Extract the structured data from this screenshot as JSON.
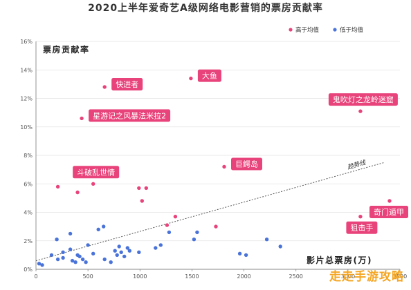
{
  "colors": {
    "high": "#e8437a",
    "low": "#4a73d9",
    "label_bg": "#e8437a",
    "watermark": "#f5a623"
  },
  "chart_data": {
    "type": "scatter",
    "title": "2020上半年爱奇艺A级网络电影营销的票房贡献率",
    "ylabel": "票房贡献率",
    "xlabel": "影片总票房(万)",
    "xlim": [
      0,
      3500
    ],
    "ylim": [
      0,
      16
    ],
    "x_ticks": [
      "0",
      "500",
      "1000",
      "1500",
      "2000",
      "2500",
      "3000",
      "3500"
    ],
    "y_ticks": [
      "0%",
      "2%",
      "4%",
      "6%",
      "8%",
      "10%",
      "12%",
      "14%",
      "16%"
    ],
    "grid": "horizontal",
    "legend_position": "top-right",
    "trend_line": {
      "label": "趋势线",
      "from": [
        0,
        0.6
      ],
      "to": [
        3350,
        7.5
      ]
    },
    "series": [
      {
        "name": "高于均值",
        "color": "#e8437a",
        "points": [
          [
            1490,
            13.4
          ],
          [
            660,
            12.8
          ],
          [
            440,
            10.6
          ],
          [
            3120,
            11.1
          ],
          [
            1810,
            7.2
          ],
          [
            550,
            6.0
          ],
          [
            210,
            5.8
          ],
          [
            400,
            5.4
          ],
          [
            990,
            5.7
          ],
          [
            1060,
            5.7
          ],
          [
            1020,
            4.8
          ],
          [
            1340,
            3.7
          ],
          [
            1260,
            3.1
          ],
          [
            1730,
            3.0
          ],
          [
            3120,
            3.7
          ],
          [
            3400,
            4.8
          ]
        ]
      },
      {
        "name": "低于均值",
        "color": "#4a73d9",
        "points": [
          [
            30,
            0.4
          ],
          [
            60,
            0.3
          ],
          [
            150,
            1.0
          ],
          [
            200,
            2.1
          ],
          [
            210,
            0.7
          ],
          [
            260,
            1.2
          ],
          [
            260,
            0.8
          ],
          [
            330,
            2.5
          ],
          [
            330,
            1.4
          ],
          [
            350,
            0.6
          ],
          [
            380,
            0.5
          ],
          [
            400,
            1.0
          ],
          [
            420,
            0.9
          ],
          [
            450,
            0.7
          ],
          [
            480,
            0.5
          ],
          [
            500,
            1.7
          ],
          [
            550,
            1.1
          ],
          [
            600,
            2.8
          ],
          [
            650,
            3.0
          ],
          [
            660,
            0.7
          ],
          [
            720,
            0.5
          ],
          [
            760,
            1.3
          ],
          [
            780,
            1.0
          ],
          [
            800,
            1.6
          ],
          [
            820,
            1.2
          ],
          [
            850,
            0.9
          ],
          [
            880,
            1.5
          ],
          [
            900,
            1.3
          ],
          [
            990,
            1.2
          ],
          [
            1150,
            1.5
          ],
          [
            1200,
            1.7
          ],
          [
            1280,
            2.6
          ],
          [
            1520,
            2.1
          ],
          [
            1550,
            2.6
          ],
          [
            1960,
            1.1
          ],
          [
            2020,
            1.0
          ],
          [
            2220,
            2.1
          ],
          [
            2350,
            1.6
          ]
        ]
      }
    ],
    "annotations": [
      {
        "text": "大鱼",
        "x": 1490,
        "y": 13.4,
        "side": "right"
      },
      {
        "text": "快进者",
        "x": 660,
        "y": 12.8,
        "side": "right"
      },
      {
        "text": "星游记之风暴法米拉2",
        "x": 440,
        "y": 10.6,
        "side": "right"
      },
      {
        "text": "鬼吹灯之龙岭迷窟",
        "x": 3120,
        "y": 11.1,
        "side": "above"
      },
      {
        "text": "巨鳄岛",
        "x": 1810,
        "y": 7.2,
        "side": "right"
      },
      {
        "text": "斗破乱世情",
        "x": 550,
        "y": 6.0,
        "side": "above"
      },
      {
        "text": "狙击手",
        "x": 3120,
        "y": 3.7,
        "side": "below"
      },
      {
        "text": "奇门遁甲",
        "x": 3400,
        "y": 4.8,
        "side": "below"
      }
    ]
  },
  "watermark": "走走手游攻略"
}
